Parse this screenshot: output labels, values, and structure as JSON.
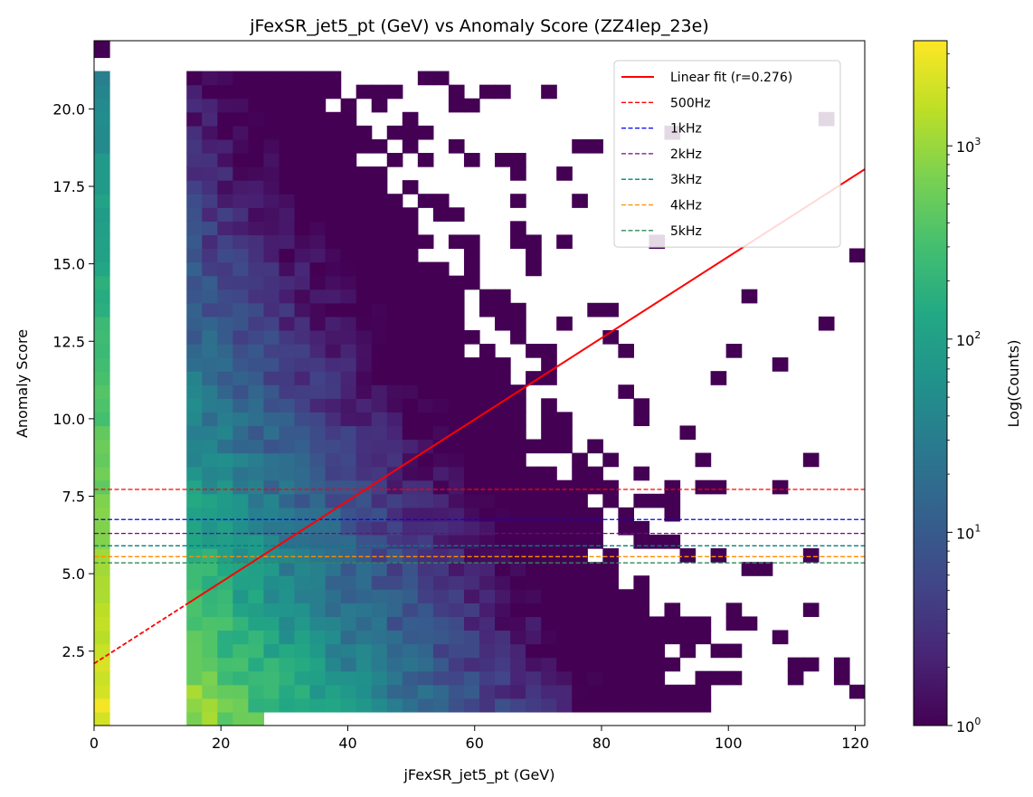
{
  "chart_data": {
    "type": "heatmap",
    "title": "jFexSR_jet5_pt (GeV) vs Anomaly Score (ZZ4lep_23e)",
    "xlabel": "jFexSR_jet5_pt (GeV)",
    "ylabel": "Anomaly Score",
    "xlim": [
      0,
      121.5
    ],
    "ylim": [
      0.1,
      22.2
    ],
    "xticks": [
      0,
      20,
      40,
      60,
      80,
      100,
      120
    ],
    "yticks": [
      2.5,
      5.0,
      7.5,
      10.0,
      12.5,
      15.0,
      17.5,
      20.0
    ],
    "grid": false,
    "colorbar": {
      "label": "Log(Counts)",
      "scale": "log",
      "range": [
        1,
        3500
      ],
      "tick_labels": [
        {
          "value": 1,
          "base": "10",
          "exp": "0"
        },
        {
          "value": 10,
          "base": "10",
          "exp": "1"
        },
        {
          "value": 100,
          "base": "10",
          "exp": "2"
        },
        {
          "value": 1000,
          "base": "10",
          "exp": "3"
        }
      ],
      "colormap": "viridis"
    },
    "fit": {
      "name": "Linear fit (r=0.276)",
      "color": "#ff0000",
      "intercept": 2.1,
      "slope": 0.1313,
      "solid_from_x": 15
    },
    "thresholds": [
      {
        "name": "500Hz",
        "y": 7.72,
        "color": "#ff0000"
      },
      {
        "name": "1kHz",
        "y": 6.75,
        "color": "#0000ff"
      },
      {
        "name": "2kHz",
        "y": 6.3,
        "color": "#800080"
      },
      {
        "name": "3kHz",
        "y": 5.9,
        "color": "#008080"
      },
      {
        "name": "4kHz",
        "y": 5.55,
        "color": "#ff8c00"
      },
      {
        "name": "5kHz",
        "y": 5.35,
        "color": "#2e8b57"
      }
    ],
    "legend": {
      "placement": "top-right"
    },
    "bins": {
      "x_width": 2.43,
      "y_width": 0.44
    },
    "heatmap_summary": [
      {
        "x_range": [
          0,
          2.43
        ],
        "y_range": [
          0.1,
          21.1
        ],
        "counts_profile": "very high (~3000) at low scores, decreasing to ~20 near score 20"
      },
      {
        "x_range": [
          14.6,
          40
        ],
        "y_range": [
          0.1,
          21.1
        ],
        "counts_profile": "hundreds to ~1000 at scores 1-10, tens at 10-17, few at 17-21"
      },
      {
        "x_range": [
          40,
          75
        ],
        "y_range": [
          0.5,
          15
        ],
        "counts_profile": "sparse, 1-30 counts"
      },
      {
        "x_range": [
          75,
          121.5
        ],
        "y_range": [
          2,
          16
        ],
        "counts_profile": "isolated single counts"
      }
    ]
  }
}
